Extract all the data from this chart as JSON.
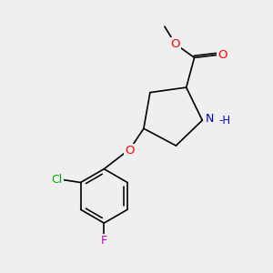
{
  "background_color": "#efefef",
  "atom_colors": {
    "C": "#000000",
    "H": "#000000",
    "N": "#0000cc",
    "O": "#ff0000",
    "Cl": "#00aa00",
    "F": "#cc00cc"
  },
  "bond_color": "#000000",
  "bond_width": 1.2,
  "font_size": 8.5,
  "fig_size": [
    3.0,
    3.0
  ],
  "dpi": 100,
  "xlim": [
    0,
    10
  ],
  "ylim": [
    0,
    10
  ]
}
